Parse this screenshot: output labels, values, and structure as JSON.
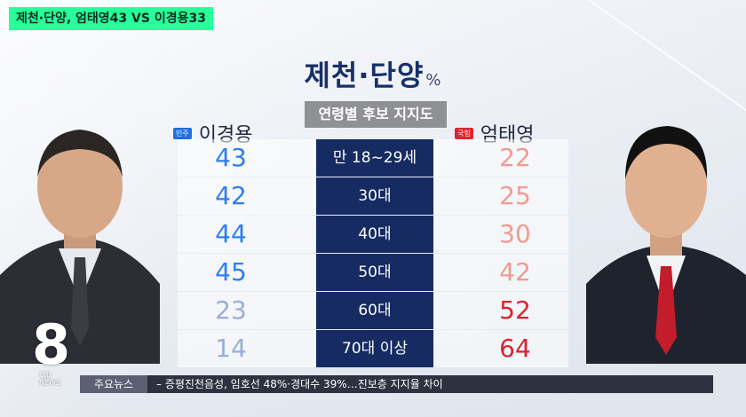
{
  "headline": "제천·단양, 엄태영43 VS 이경용33",
  "title": {
    "main": "제천·단양",
    "unit": "%"
  },
  "subtitle": "연령별 후보 지지도",
  "candidates": {
    "left": {
      "party": "민주",
      "name": "이경용",
      "color": "#2e7ff0"
    },
    "right": {
      "party": "국힘",
      "name": "엄태영",
      "color": "#e2283a"
    }
  },
  "rows": [
    {
      "age": "만 18~29세",
      "left": "43",
      "right": "22",
      "left_color": "#2e7ff0",
      "right_color": "#f19a90"
    },
    {
      "age": "30대",
      "left": "42",
      "right": "25",
      "left_color": "#2e7ff0",
      "right_color": "#f19a90"
    },
    {
      "age": "40대",
      "left": "44",
      "right": "30",
      "left_color": "#2e7ff0",
      "right_color": "#f19a90"
    },
    {
      "age": "50대",
      "left": "45",
      "right": "42",
      "left_color": "#2e7ff0",
      "right_color": "#f19a90"
    },
    {
      "age": "60대",
      "left": "23",
      "right": "52",
      "left_color": "#9aaed6",
      "right_color": "#d8232f"
    },
    {
      "age": "70대 이상",
      "left": "14",
      "right": "64",
      "left_color": "#9aaed6",
      "right_color": "#d8232f"
    }
  ],
  "logo": {
    "digit": "8",
    "line1": "CJB",
    "line2": "NEWS"
  },
  "ticker": {
    "label": "주요뉴스",
    "text": "– 증평진천음성, 임호선 48%·경대수 39%…진보층 지지율 차이"
  }
}
